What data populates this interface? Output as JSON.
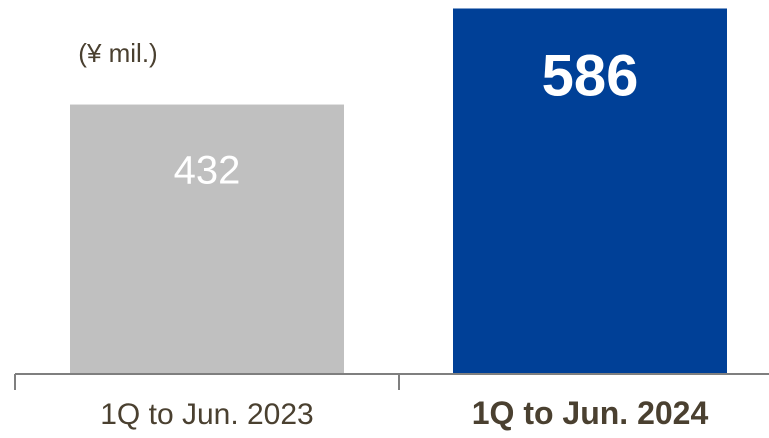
{
  "chart_data": {
    "type": "bar",
    "unit_label": "(¥ mil.)",
    "categories": [
      "1Q to Jun. 2023",
      "1Q to Jun. 2024"
    ],
    "values": [
      432,
      586
    ],
    "data_labels": [
      "432",
      "586"
    ],
    "ylim": [
      0,
      590
    ],
    "bar_colors": [
      "#c0c0c0",
      "#004097"
    ],
    "label_colors": [
      "#ffffff",
      "#ffffff"
    ],
    "highlight_index": 1,
    "axis_color": "#7f7f7f",
    "text_color": "#4a4030",
    "grid": false,
    "legend": "none"
  }
}
